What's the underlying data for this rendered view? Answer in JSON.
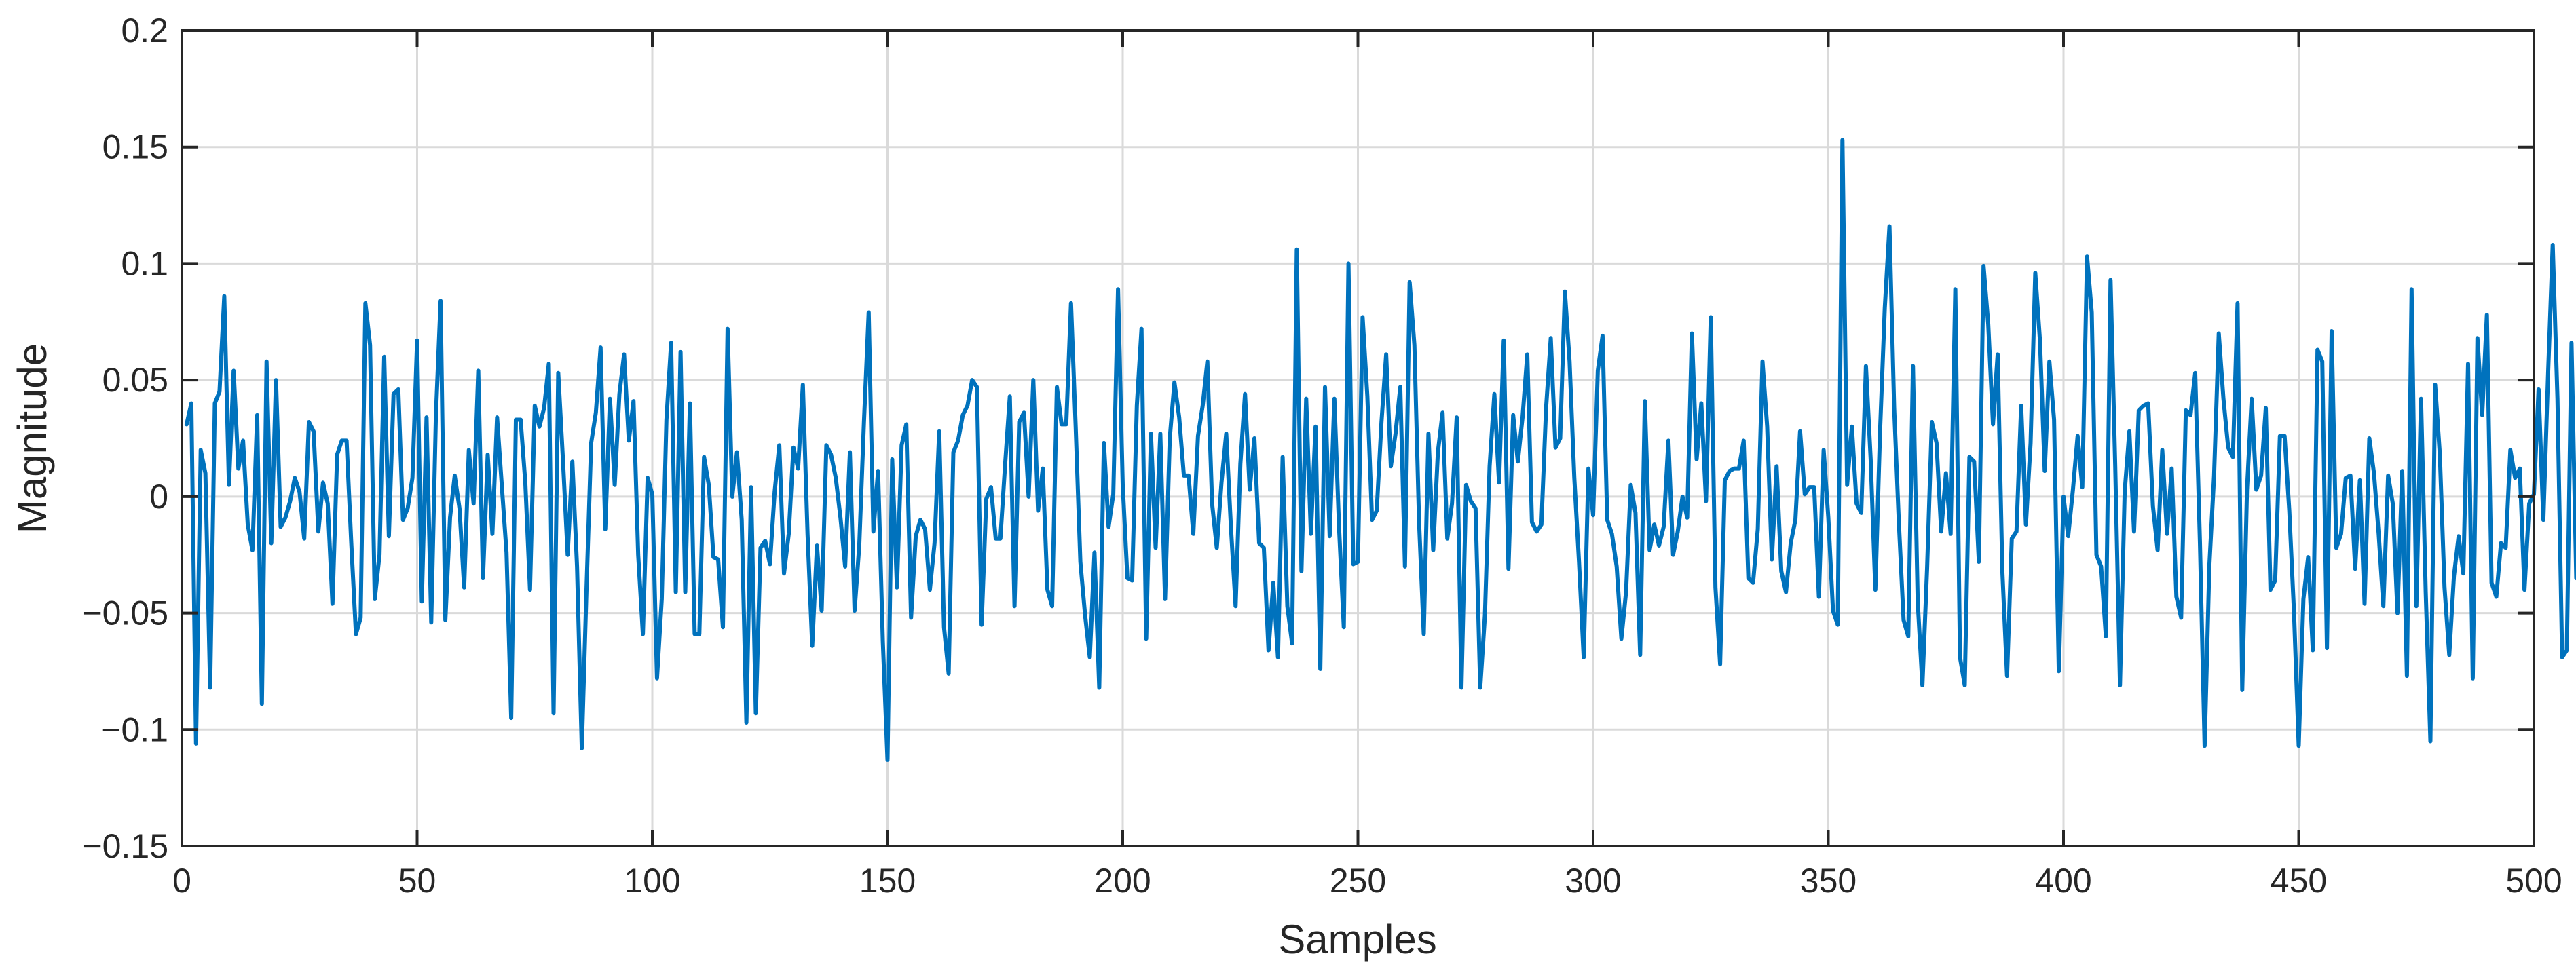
{
  "chart_data": {
    "type": "line",
    "title": "",
    "xlabel": "Samples",
    "ylabel": "Magnitude",
    "xlim": [
      0,
      500
    ],
    "ylim": [
      -0.15,
      0.2
    ],
    "xticks": [
      0,
      50,
      100,
      150,
      200,
      250,
      300,
      350,
      400,
      450,
      500
    ],
    "yticks": [
      -0.15,
      -0.1,
      -0.05,
      0,
      0.05,
      0.1,
      0.15,
      0.2
    ],
    "xtick_labels": [
      "0",
      "50",
      "100",
      "150",
      "200",
      "250",
      "300",
      "350",
      "400",
      "450",
      "500"
    ],
    "ytick_labels": [
      "−0.15",
      "−0.1",
      "−0.05",
      "0",
      "0.05",
      "0.1",
      "0.15",
      "0.2"
    ],
    "grid": true,
    "series_color": "#0072BD",
    "series": [
      {
        "x_start": 1,
        "x_step": 1,
        "values": [
          0.031,
          0.04,
          -0.106,
          0.02,
          0.01,
          -0.082,
          0.04,
          0.045,
          0.086,
          0.005,
          0.054,
          0.012,
          0.024,
          -0.012,
          -0.023,
          0.035,
          -0.089,
          0.058,
          -0.02,
          0.05,
          -0.013,
          -0.009,
          -0.002,
          0.008,
          0.002,
          -0.018,
          0.032,
          0.028,
          -0.015,
          0.006,
          -0.003,
          -0.046,
          0.018,
          0.024,
          0.024,
          -0.02,
          -0.059,
          -0.052,
          0.083,
          0.065,
          -0.044,
          -0.025,
          0.06,
          -0.017,
          0.044,
          0.046,
          -0.01,
          -0.005,
          0.008,
          0.067,
          -0.045,
          0.034,
          -0.054,
          0.035,
          0.084,
          -0.053,
          -0.009,
          0.009,
          -0.005,
          -0.039,
          0.02,
          -0.003,
          0.054,
          -0.035,
          0.018,
          -0.016,
          0.034,
          0.005,
          -0.024,
          -0.095,
          0.033,
          0.033,
          0.006,
          -0.04,
          0.039,
          0.03,
          0.038,
          0.057,
          -0.093,
          0.053,
          0.016,
          -0.025,
          0.015,
          -0.03,
          -0.108,
          -0.04,
          0.023,
          0.036,
          0.064,
          -0.014,
          0.042,
          0.005,
          0.044,
          0.061,
          0.024,
          0.041,
          -0.025,
          -0.059,
          0.008,
          0.001,
          -0.078,
          -0.044,
          0.033,
          0.066,
          -0.041,
          0.062,
          -0.041,
          0.04,
          -0.059,
          -0.059,
          0.017,
          0.005,
          -0.026,
          -0.027,
          -0.056,
          0.072,
          0.0,
          0.019,
          -0.01,
          -0.097,
          0.004,
          -0.093,
          -0.022,
          -0.019,
          -0.029,
          0.002,
          0.022,
          -0.033,
          -0.016,
          0.021,
          0.012,
          0.048,
          -0.016,
          -0.064,
          -0.021,
          -0.049,
          0.022,
          0.018,
          0.008,
          -0.009,
          -0.03,
          0.019,
          -0.049,
          -0.021,
          0.032,
          0.079,
          -0.015,
          0.011,
          -0.062,
          -0.113,
          0.016,
          -0.039,
          0.022,
          0.031,
          -0.052,
          -0.017,
          -0.01,
          -0.014,
          -0.04,
          -0.02,
          0.028,
          -0.056,
          -0.076,
          0.019,
          0.024,
          0.035,
          0.039,
          0.05,
          0.047,
          -0.055,
          -0.001,
          0.004,
          -0.018,
          -0.018,
          0.014,
          0.043,
          -0.047,
          0.032,
          0.036,
          0.0,
          0.05,
          -0.006,
          0.012,
          -0.04,
          -0.047,
          0.047,
          0.031,
          0.031,
          0.083,
          0.03,
          -0.028,
          -0.051,
          -0.069,
          -0.024,
          -0.082,
          0.023,
          -0.013,
          0.001,
          0.089,
          0.005,
          -0.035,
          -0.036,
          0.039,
          0.072,
          -0.061,
          0.027,
          -0.022,
          0.027,
          -0.044,
          0.025,
          0.049,
          0.034,
          0.009,
          0.009,
          -0.016,
          0.026,
          0.039,
          0.058,
          -0.003,
          -0.022,
          0.006,
          0.027,
          -0.013,
          -0.047,
          0.014,
          0.044,
          0.003,
          0.025,
          -0.02,
          -0.022,
          -0.066,
          -0.037,
          -0.069,
          0.017,
          -0.047,
          -0.063,
          0.106,
          -0.032,
          0.042,
          -0.016,
          0.03,
          -0.074,
          0.047,
          -0.017,
          0.042,
          -0.014,
          -0.056,
          0.1,
          -0.029,
          -0.028,
          0.077,
          0.043,
          -0.01,
          -0.006,
          0.032,
          0.061,
          0.013,
          0.027,
          0.047,
          -0.03,
          0.092,
          0.065,
          -0.011,
          -0.059,
          0.027,
          -0.023,
          0.019,
          0.036,
          -0.018,
          -0.003,
          0.034,
          -0.082,
          0.005,
          -0.002,
          -0.005,
          -0.082,
          -0.051,
          0.013,
          0.044,
          0.006,
          0.067,
          -0.031,
          0.035,
          0.015,
          0.034,
          0.061,
          -0.011,
          -0.015,
          -0.012,
          0.038,
          0.068,
          0.021,
          0.025,
          0.088,
          0.058,
          0.008,
          -0.028,
          -0.069,
          0.012,
          -0.008,
          0.054,
          0.069,
          -0.01,
          -0.016,
          -0.03,
          -0.061,
          -0.041,
          0.005,
          -0.007,
          -0.068,
          0.041,
          -0.023,
          -0.012,
          -0.021,
          -0.013,
          0.024,
          -0.025,
          -0.015,
          0.0,
          -0.009,
          0.07,
          0.016,
          0.04,
          -0.002,
          0.077,
          -0.039,
          -0.072,
          0.007,
          0.011,
          0.012,
          0.012,
          0.024,
          -0.035,
          -0.037,
          -0.014,
          0.058,
          0.03,
          -0.027,
          0.013,
          -0.032,
          -0.041,
          -0.02,
          -0.01,
          0.028,
          0.001,
          0.004,
          0.004,
          -0.043,
          0.02,
          -0.009,
          -0.049,
          -0.055,
          0.153,
          0.005,
          0.03,
          -0.003,
          -0.007,
          0.056,
          0.016,
          -0.04,
          0.028,
          0.081,
          0.116,
          0.038,
          -0.011,
          -0.053,
          -0.06,
          0.056,
          -0.045,
          -0.081,
          -0.031,
          0.032,
          0.023,
          -0.015,
          0.01,
          -0.016,
          0.089,
          -0.069,
          -0.081,
          0.017,
          0.015,
          -0.028,
          0.099,
          0.074,
          0.031,
          0.061,
          -0.032,
          -0.077,
          -0.018,
          -0.015,
          0.039,
          -0.012,
          0.023,
          0.096,
          0.067,
          0.011,
          0.058,
          0.033,
          -0.075,
          0.0,
          -0.017,
          0.003,
          0.026,
          0.004,
          0.103,
          0.079,
          -0.025,
          -0.03,
          -0.06,
          0.093,
          0.013,
          -0.081,
          0.002,
          0.028,
          -0.015,
          0.037,
          0.039,
          0.04,
          -0.004,
          -0.023,
          0.02,
          -0.016,
          0.012,
          -0.043,
          -0.052,
          0.037,
          0.035,
          0.053,
          -0.02,
          -0.107,
          -0.03,
          0.009,
          0.07,
          0.042,
          0.021,
          0.017,
          0.083,
          -0.083,
          0.003,
          0.042,
          0.003,
          0.009,
          0.038,
          -0.04,
          -0.036,
          0.026,
          0.026,
          -0.006,
          -0.05,
          -0.107,
          -0.044,
          -0.026,
          -0.066,
          0.063,
          0.058,
          -0.065,
          0.071,
          -0.022,
          -0.016,
          0.008,
          0.009,
          -0.031,
          0.007,
          -0.046,
          0.025,
          0.01,
          -0.016,
          -0.047,
          0.009,
          -0.003,
          -0.05,
          0.011,
          -0.077,
          0.089,
          -0.047,
          0.042,
          -0.041,
          -0.105,
          0.048,
          0.018,
          -0.039,
          -0.068,
          -0.034,
          -0.017,
          -0.033,
          0.057,
          -0.078,
          0.068,
          0.035,
          0.078,
          -0.037,
          -0.043,
          -0.02,
          -0.022,
          0.02,
          0.008,
          0.012,
          -0.04,
          -0.003,
          0.001,
          0.046,
          -0.01,
          0.052,
          0.108,
          0.042,
          -0.069,
          -0.066,
          0.066,
          -0.035,
          -0.019,
          0.019,
          -0.008,
          0.008,
          -0.084,
          0.063,
          -0.027,
          0.009,
          0.006,
          -0.025
        ]
      }
    ]
  }
}
